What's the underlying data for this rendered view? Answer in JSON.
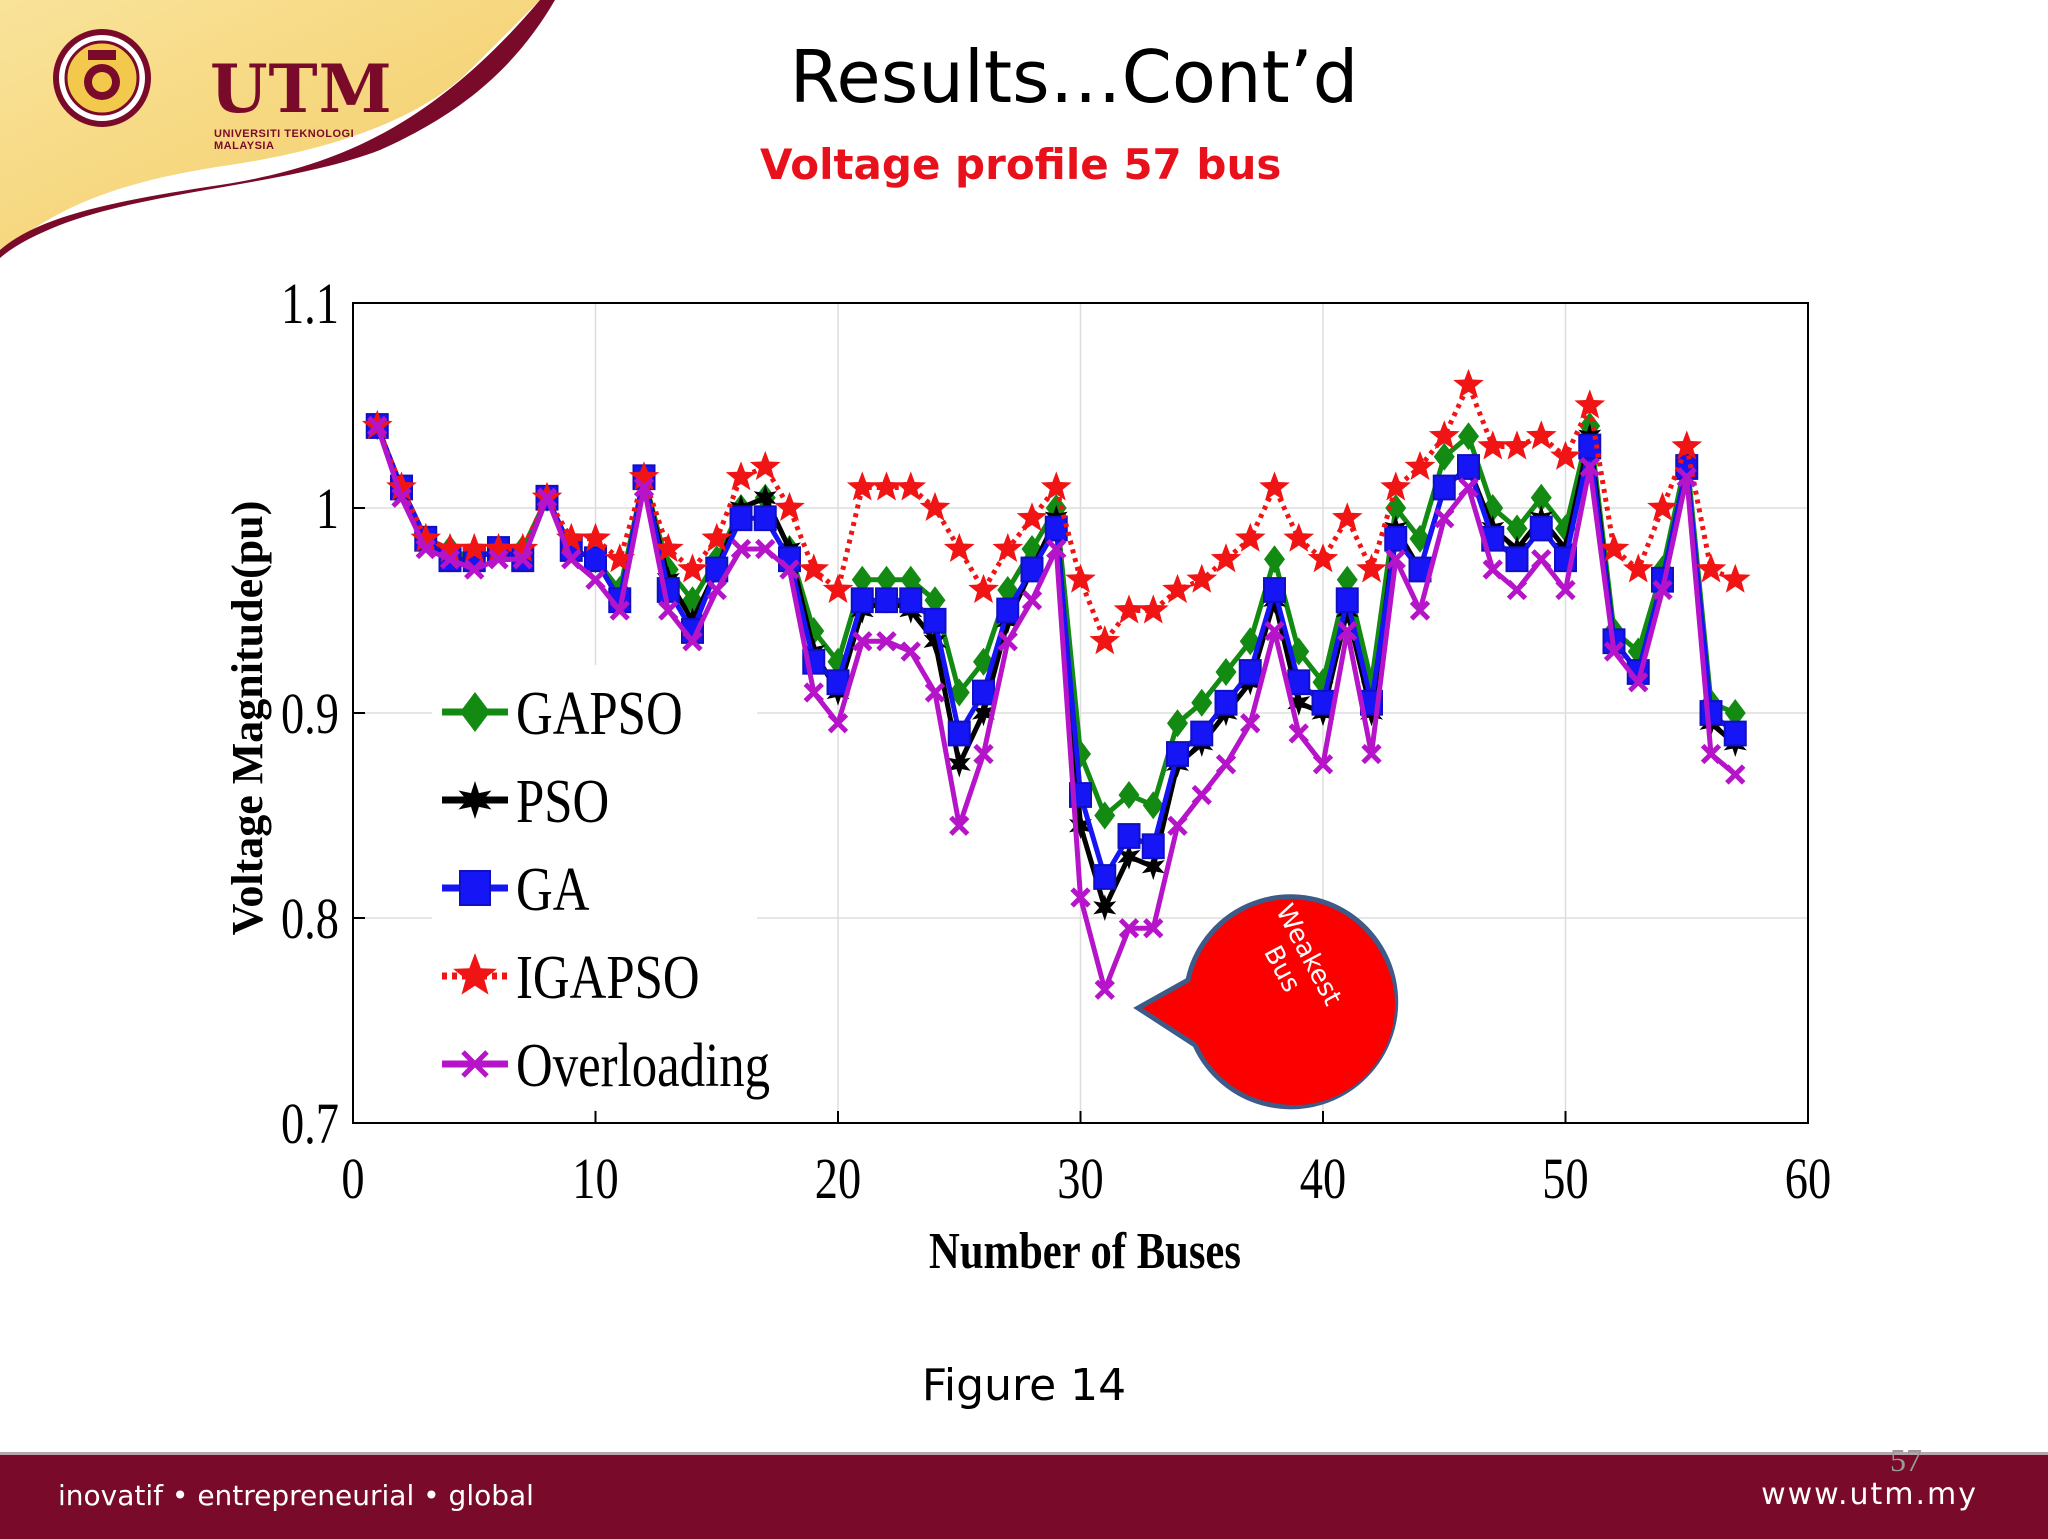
{
  "header": {
    "logo_text": "UTM",
    "logo_subtext": "UNIVERSITI TEKNOLOGI MALAYSIA",
    "title": "Results…Cont’d",
    "subtitle": "Voltage profile 57 bus"
  },
  "callout": {
    "line1": "Weakest",
    "line2": "Bus"
  },
  "caption": "Figure 14",
  "page_number": "57",
  "footer": {
    "left": "inovatif • entrepreneurial • global",
    "right": "www.utm.my"
  },
  "colors": {
    "brand": "#7a0a2a",
    "accent": "#e8101a",
    "gold": "#f2c94c"
  },
  "chart_data": {
    "type": "line",
    "title": "",
    "xlabel": "Number of Buses",
    "ylabel": "Voltage Magnitude(pu)",
    "xlim": [
      0,
      60
    ],
    "ylim": [
      0.7,
      1.1
    ],
    "x_ticks": [
      "0",
      "10",
      "20",
      "30",
      "40",
      "50",
      "60"
    ],
    "y_ticks": [
      "0.7",
      "0.8",
      "0.9",
      "1",
      "1.1"
    ],
    "grid": true,
    "legend_position": "left",
    "x": [
      1,
      2,
      3,
      4,
      5,
      6,
      7,
      8,
      9,
      10,
      11,
      12,
      13,
      14,
      15,
      16,
      17,
      18,
      19,
      20,
      21,
      22,
      23,
      24,
      25,
      26,
      27,
      28,
      29,
      30,
      31,
      32,
      33,
      34,
      35,
      36,
      37,
      38,
      39,
      40,
      41,
      42,
      43,
      44,
      45,
      46,
      47,
      48,
      49,
      50,
      51,
      52,
      53,
      54,
      55,
      56,
      57
    ],
    "series": [
      {
        "name": "GAPSO",
        "color": "#138a12",
        "style": "solid",
        "marker": "diamond",
        "values": [
          1.04,
          1.01,
          0.985,
          0.98,
          0.975,
          0.98,
          0.98,
          1.005,
          0.98,
          0.975,
          0.96,
          1.015,
          0.97,
          0.955,
          0.975,
          1.0,
          1.005,
          0.98,
          0.94,
          0.925,
          0.965,
          0.965,
          0.965,
          0.955,
          0.91,
          0.925,
          0.96,
          0.98,
          1.0,
          0.88,
          0.85,
          0.86,
          0.855,
          0.895,
          0.905,
          0.92,
          0.935,
          0.975,
          0.93,
          0.915,
          0.965,
          0.915,
          1.0,
          0.985,
          1.025,
          1.035,
          1.0,
          0.99,
          1.005,
          0.99,
          1.04,
          0.94,
          0.93,
          0.97,
          1.025,
          0.905,
          0.9
        ]
      },
      {
        "name": "PSO",
        "color": "#000000",
        "style": "solid",
        "marker": "hexagram",
        "values": [
          1.04,
          1.01,
          0.985,
          0.975,
          0.975,
          0.98,
          0.975,
          1.005,
          0.98,
          0.975,
          0.955,
          1.015,
          0.965,
          0.945,
          0.97,
          1.0,
          1.005,
          0.98,
          0.93,
          0.91,
          0.95,
          0.955,
          0.95,
          0.935,
          0.875,
          0.9,
          0.945,
          0.97,
          0.995,
          0.845,
          0.805,
          0.83,
          0.825,
          0.875,
          0.885,
          0.9,
          0.915,
          0.955,
          0.905,
          0.9,
          0.95,
          0.9,
          0.99,
          0.97,
          1.01,
          1.02,
          0.99,
          0.98,
          0.995,
          0.98,
          1.035,
          0.935,
          0.92,
          0.965,
          1.02,
          0.895,
          0.885
        ]
      },
      {
        "name": "GA",
        "color": "#1515f5",
        "style": "solid",
        "marker": "square",
        "values": [
          1.04,
          1.01,
          0.985,
          0.975,
          0.975,
          0.98,
          0.975,
          1.005,
          0.98,
          0.975,
          0.955,
          1.015,
          0.96,
          0.94,
          0.97,
          0.995,
          0.995,
          0.975,
          0.925,
          0.915,
          0.955,
          0.955,
          0.955,
          0.945,
          0.89,
          0.91,
          0.95,
          0.97,
          0.99,
          0.86,
          0.82,
          0.84,
          0.835,
          0.88,
          0.89,
          0.905,
          0.92,
          0.96,
          0.915,
          0.905,
          0.955,
          0.905,
          0.985,
          0.97,
          1.01,
          1.02,
          0.985,
          0.975,
          0.99,
          0.975,
          1.03,
          0.935,
          0.92,
          0.965,
          1.02,
          0.9,
          0.89
        ]
      },
      {
        "name": "IGAPSO",
        "color": "#f01414",
        "style": "dotted",
        "marker": "pentagram",
        "values": [
          1.04,
          1.01,
          0.985,
          0.98,
          0.98,
          0.98,
          0.98,
          1.005,
          0.985,
          0.985,
          0.975,
          1.015,
          0.98,
          0.97,
          0.985,
          1.015,
          1.02,
          1.0,
          0.97,
          0.96,
          1.01,
          1.01,
          1.01,
          1.0,
          0.98,
          0.96,
          0.98,
          0.995,
          1.01,
          0.965,
          0.935,
          0.95,
          0.95,
          0.96,
          0.965,
          0.975,
          0.985,
          1.01,
          0.985,
          0.975,
          0.995,
          0.97,
          1.01,
          1.02,
          1.035,
          1.06,
          1.03,
          1.03,
          1.035,
          1.025,
          1.05,
          0.98,
          0.97,
          1.0,
          1.03,
          0.97,
          0.965
        ]
      },
      {
        "name": "Overloading",
        "color": "#b514c8",
        "style": "solid",
        "marker": "x",
        "values": [
          1.04,
          1.005,
          0.98,
          0.975,
          0.97,
          0.975,
          0.975,
          1.005,
          0.975,
          0.965,
          0.95,
          1.01,
          0.95,
          0.935,
          0.96,
          0.98,
          0.98,
          0.97,
          0.91,
          0.895,
          0.935,
          0.935,
          0.93,
          0.91,
          0.845,
          0.88,
          0.935,
          0.955,
          0.98,
          0.81,
          0.765,
          0.795,
          0.795,
          0.845,
          0.86,
          0.875,
          0.895,
          0.94,
          0.89,
          0.875,
          0.94,
          0.88,
          0.975,
          0.95,
          0.995,
          1.01,
          0.97,
          0.96,
          0.975,
          0.96,
          1.02,
          0.93,
          0.915,
          0.96,
          1.015,
          0.88,
          0.87
        ]
      }
    ]
  }
}
